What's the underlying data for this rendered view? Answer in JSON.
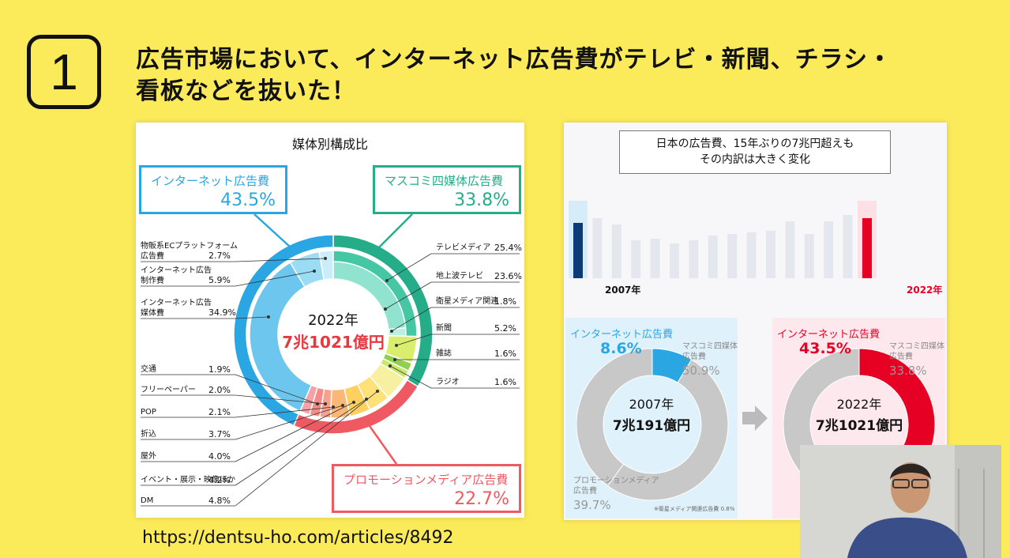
{
  "slide": {
    "number": "1",
    "headline_line1": "広告市場において、インターネット広告費がテレビ・新聞、チラシ・",
    "headline_line2": "看板などを抜いた！",
    "url": "https://dentsu-ho.com/articles/8492"
  },
  "colors": {
    "background": "#fbea5a",
    "internet": "#2aa6e3",
    "mass": "#25ad8a",
    "promo": "#ef5a62",
    "red_2022": "#e60023",
    "navy_2007": "#0b3b78"
  },
  "chart_data": [
    {
      "type": "pie",
      "title": "媒体別構成比",
      "center_year": "2022年",
      "center_total": "7兆1021億円",
      "outer_groups": [
        {
          "name": "インターネット広告費",
          "value": 43.5,
          "label": "43.5%"
        },
        {
          "name": "マスコミ四媒体広告費",
          "value": 33.8,
          "label": "33.8%"
        },
        {
          "name": "プロモーションメディア広告費",
          "value": 22.7,
          "label": "22.7%"
        }
      ],
      "inner_segments": [
        {
          "name": "物販系ECプラットフォーム広告費",
          "group": "internet",
          "value": 2.7
        },
        {
          "name": "インターネット広告制作費",
          "group": "internet",
          "value": 5.9
        },
        {
          "name": "インターネット広告媒体費",
          "group": "internet",
          "value": 34.9
        },
        {
          "name": "テレビメディア",
          "group": "mass",
          "value": 25.4
        },
        {
          "name": "地上波テレビ",
          "group": "mass",
          "value": 23.6
        },
        {
          "name": "衛星メディア関連",
          "group": "mass",
          "value": 1.8
        },
        {
          "name": "新聞",
          "group": "mass",
          "value": 5.2
        },
        {
          "name": "雑誌",
          "group": "mass",
          "value": 1.6
        },
        {
          "name": "ラジオ",
          "group": "mass",
          "value": 1.6
        },
        {
          "name": "交通",
          "group": "promo",
          "value": 1.9
        },
        {
          "name": "フリーペーパー",
          "group": "promo",
          "value": 2.0
        },
        {
          "name": "POP",
          "group": "promo",
          "value": 2.1
        },
        {
          "name": "折込",
          "group": "promo",
          "value": 3.7
        },
        {
          "name": "屋外",
          "group": "promo",
          "value": 4.0
        },
        {
          "name": "イベント・展示・映像ほか",
          "group": "promo",
          "value": 4.2
        },
        {
          "name": "DM",
          "group": "promo",
          "value": 4.8
        }
      ]
    },
    {
      "type": "pie",
      "title": "日本の広告費、15年ぶりの7兆円超えも\nその内訳は大きく変化",
      "charts": [
        {
          "year": "2007年",
          "total": "7兆191億円",
          "internet": 8.6,
          "mass": 50.9,
          "promo": 39.7
        },
        {
          "year": "2022年",
          "total": "7兆1021億円",
          "internet": 43.5,
          "mass": 33.8
        }
      ]
    }
  ],
  "left_chart": {
    "callout_internet": {
      "title": "インターネット広告費",
      "pct": "43.5%"
    },
    "callout_mass": {
      "title": "マスコミ四媒体広告費",
      "pct": "33.8%"
    },
    "callout_promo": {
      "title": "プロモーションメディア広告費",
      "pct": "22.7%"
    },
    "left_labels": [
      {
        "name": "物販系ECプラットフォーム\n広告費",
        "value": "2.7%"
      },
      {
        "name": "インターネット広告\n制作費",
        "value": "5.9%"
      },
      {
        "name": "インターネット広告\n媒体費",
        "value": "34.9%"
      },
      {
        "name": "交通",
        "value": "1.9%"
      },
      {
        "name": "フリーペーパー",
        "value": "2.0%"
      },
      {
        "name": "POP",
        "value": "2.1%"
      },
      {
        "name": "折込",
        "value": "3.7%"
      },
      {
        "name": "屋外",
        "value": "4.0%"
      },
      {
        "name": "イベント・展示・映像ほか",
        "value": "4.2%"
      },
      {
        "name": "DM",
        "value": "4.8%"
      }
    ],
    "right_labels": [
      {
        "name": "テレビメディア",
        "value": "25.4%"
      },
      {
        "name": "地上波テレビ",
        "value": "23.6%"
      },
      {
        "name": "衛星メディア関連",
        "value": "1.8%"
      },
      {
        "name": "新聞",
        "value": "5.2%"
      },
      {
        "name": "雑誌",
        "value": "1.6%"
      },
      {
        "name": "ラジオ",
        "value": "1.6%"
      }
    ],
    "center_year": "2022年",
    "center_total": "7兆1021億円"
  },
  "right_chart": {
    "title": "日本の広告費、15年ぶりの7兆円超えも\nその内訳は大きく変化",
    "year_2007": "2007年",
    "year_2022": "2022年",
    "left_card": {
      "net_label": "インターネット広告費",
      "net_pct": "8.6%",
      "mass_label": "マスコミ四媒体\n広告費",
      "mass_pct": "50.9%",
      "promo_label": "プロモーションメディア\n広告費",
      "promo_pct": "39.7%",
      "center_year": "2007年",
      "center_total": "7兆191億円",
      "note": "※衛星メディア関連広告費 0.8%"
    },
    "right_card": {
      "net_label": "インターネット広告費",
      "net_pct": "43.5%",
      "mass_label": "マスコミ四媒体\n広告費",
      "mass_pct": "33.8%",
      "center_year": "2022年",
      "center_total": "7兆1021億円"
    }
  }
}
